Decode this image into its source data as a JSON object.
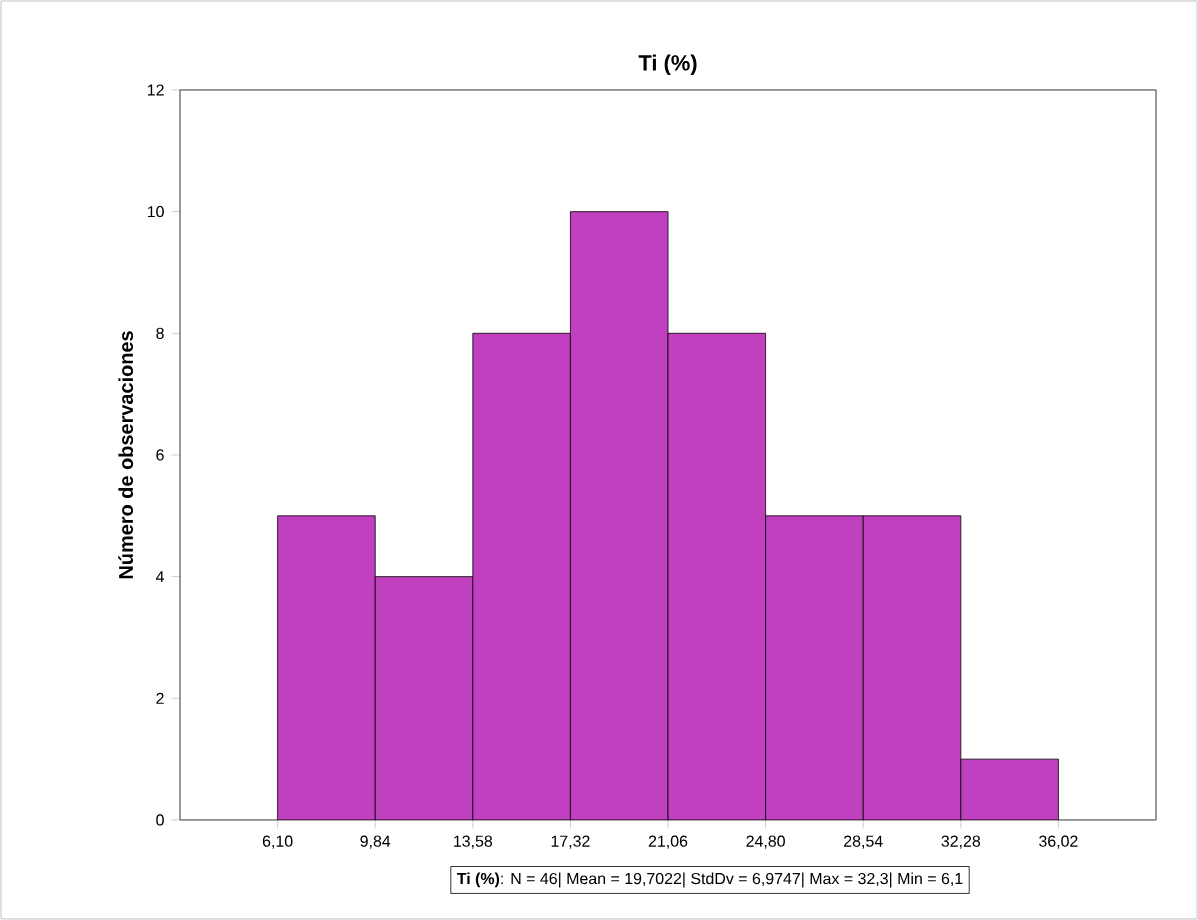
{
  "chart_data": {
    "type": "histogram",
    "title": "Ti (%)",
    "ylabel": "Número de observaciones",
    "bins": [
      6.1,
      9.84,
      13.58,
      17.32,
      21.06,
      24.8,
      28.54,
      32.28,
      36.02
    ],
    "values": [
      5,
      4,
      8,
      10,
      8,
      5,
      5,
      1
    ],
    "color": "#c040c0",
    "xlim": [
      2.36,
      39.76
    ],
    "xticks": [
      {
        "value": 6.1,
        "label": "6,10"
      },
      {
        "value": 9.84,
        "label": "9,84"
      },
      {
        "value": 13.58,
        "label": "13,58"
      },
      {
        "value": 17.32,
        "label": "17,32"
      },
      {
        "value": 21.06,
        "label": "21,06"
      },
      {
        "value": 24.8,
        "label": "24,80"
      },
      {
        "value": 28.54,
        "label": "28,54"
      },
      {
        "value": 32.28,
        "label": "32,28"
      },
      {
        "value": 36.02,
        "label": "36,02"
      }
    ],
    "ylim": [
      0,
      12
    ],
    "yticks": [
      0,
      2,
      4,
      6,
      8,
      10,
      12
    ],
    "annotations": [
      "**Ti (%)**: N = 46| Mean = 19,7022| StdDv = 6,9747| Max = 32,3| Min = 6,1"
    ]
  }
}
